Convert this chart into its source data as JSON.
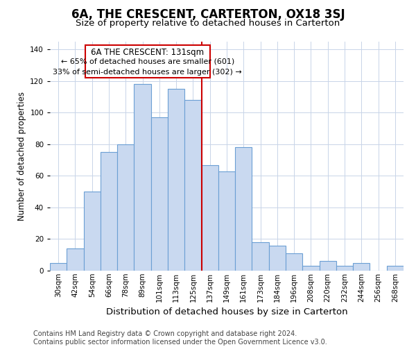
{
  "title": "6A, THE CRESCENT, CARTERTON, OX18 3SJ",
  "subtitle": "Size of property relative to detached houses in Carterton",
  "xlabel": "Distribution of detached houses by size in Carterton",
  "ylabel": "Number of detached properties",
  "bar_labels": [
    "30sqm",
    "42sqm",
    "54sqm",
    "66sqm",
    "78sqm",
    "89sqm",
    "101sqm",
    "113sqm",
    "125sqm",
    "137sqm",
    "149sqm",
    "161sqm",
    "173sqm",
    "184sqm",
    "196sqm",
    "208sqm",
    "220sqm",
    "232sqm",
    "244sqm",
    "256sqm",
    "268sqm"
  ],
  "bar_values": [
    5,
    14,
    50,
    75,
    80,
    118,
    97,
    115,
    108,
    67,
    63,
    78,
    18,
    16,
    11,
    3,
    6,
    3,
    5,
    0,
    3
  ],
  "bar_color": "#c9d9f0",
  "bar_edge_color": "#6b9fd4",
  "property_line_label": "6A THE CRESCENT: 131sqm",
  "annotation_line1": "← 65% of detached houses are smaller (601)",
  "annotation_line2": "33% of semi-detached houses are larger (302) →",
  "annotation_box_edge": "#cc0000",
  "annotation_box_fill": "#ffffff",
  "vline_color": "#cc0000",
  "vline_x": 8.5,
  "ylim": [
    0,
    145
  ],
  "yticks": [
    0,
    20,
    40,
    60,
    80,
    100,
    120,
    140
  ],
  "footer_line1": "Contains HM Land Registry data © Crown copyright and database right 2024.",
  "footer_line2": "Contains public sector information licensed under the Open Government Licence v3.0.",
  "bg_color": "#ffffff",
  "grid_color": "#c8d4e8",
  "title_fontsize": 12,
  "subtitle_fontsize": 9.5,
  "xlabel_fontsize": 9.5,
  "ylabel_fontsize": 8.5,
  "tick_fontsize": 7.5,
  "annot_fontsize": 8,
  "footer_fontsize": 7
}
